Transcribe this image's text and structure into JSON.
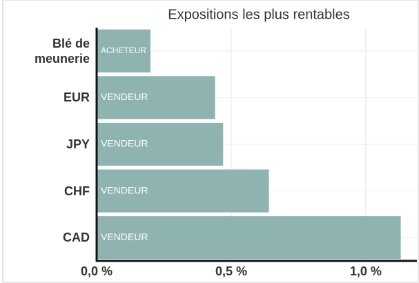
{
  "chart_data": {
    "type": "hbar",
    "title": "Expositions les plus rentables",
    "categories": [
      "Blé de meunerie",
      "EUR",
      "JPY",
      "CHF",
      "CAD"
    ],
    "values": [
      0.2,
      0.44,
      0.47,
      0.64,
      1.13
    ],
    "bar_labels": [
      "ACHETEUR",
      "VENDEUR",
      "VENDEUR",
      "VENDEUR",
      "VENDEUR"
    ],
    "color": "#8fb3b0",
    "xlim": [
      0,
      1.19
    ],
    "xticks": [
      {
        "value": 0,
        "label": "0,0 %"
      },
      {
        "value": 0.5,
        "label": "0,5 %"
      },
      {
        "value": 1,
        "label": "1,0 %"
      }
    ],
    "grid": true
  }
}
